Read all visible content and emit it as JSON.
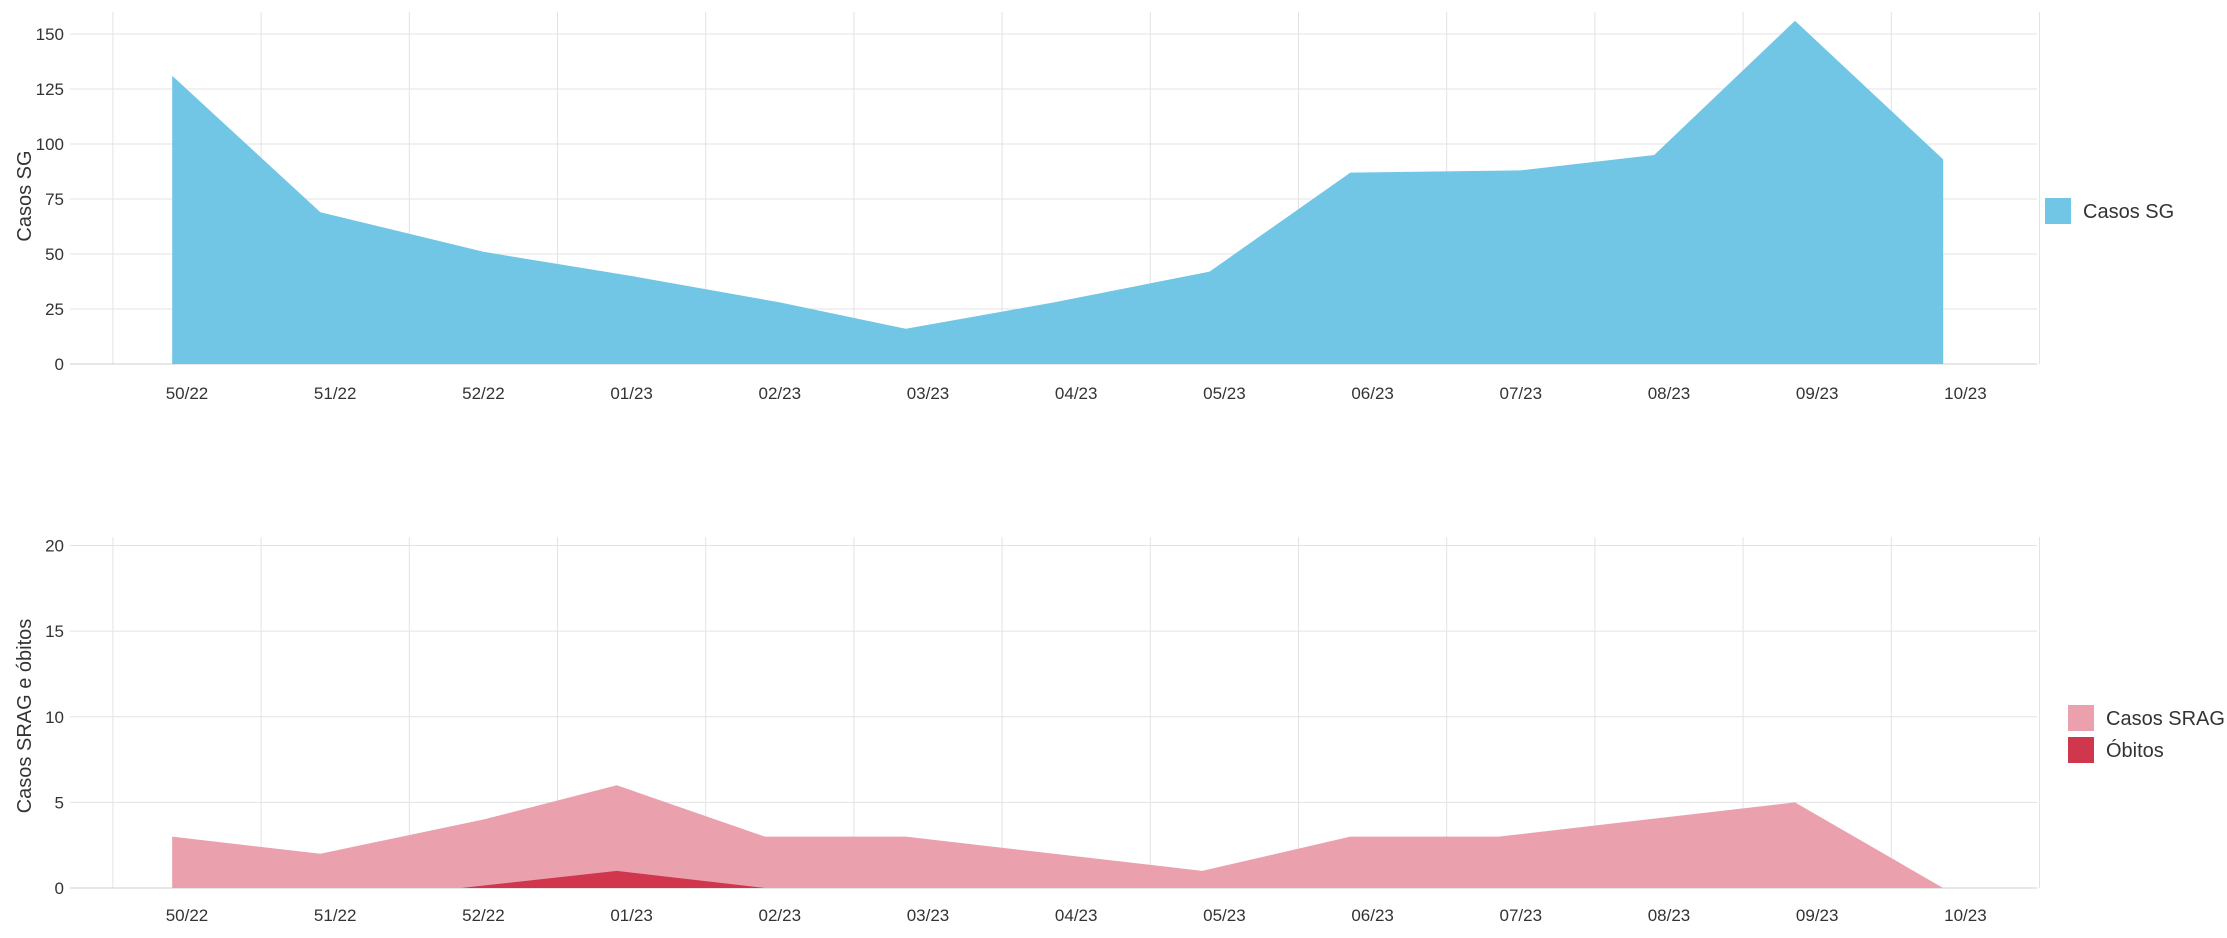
{
  "chart_data": [
    {
      "type": "area",
      "ylabel": "Casos SG",
      "ylim": [
        0,
        160
      ],
      "yticks": [
        0,
        25,
        50,
        75,
        100,
        125,
        150
      ],
      "categories": [
        "50/22",
        "51/22",
        "52/22",
        "01/23",
        "02/23",
        "03/23",
        "04/23",
        "05/23",
        "06/23",
        "07/23",
        "08/23",
        "09/23",
        "10/23"
      ],
      "x": [
        0,
        1,
        2,
        3,
        4,
        5,
        6,
        7,
        8,
        9,
        10,
        11,
        12
      ],
      "series": [
        {
          "name": "Casos SG",
          "color": "#72c6e5",
          "x": [
            -0.1,
            0.9,
            2,
            3,
            4,
            4.85,
            5.85,
            6.9,
            7.85,
            9,
            9.9,
            10.85,
            11.85
          ],
          "values": [
            131,
            69,
            51,
            40,
            28,
            16,
            28,
            42,
            87,
            88,
            95,
            156,
            93
          ]
        }
      ],
      "grid": true,
      "legend_position": "right"
    },
    {
      "type": "area",
      "ylabel": "Casos SRAG e óbitos",
      "ylim": [
        0,
        20.5
      ],
      "yticks": [
        0,
        5,
        10,
        15,
        20
      ],
      "categories": [
        "50/22",
        "51/22",
        "52/22",
        "01/23",
        "02/23",
        "03/23",
        "04/23",
        "05/23",
        "06/23",
        "07/23",
        "08/23",
        "09/23",
        "10/23"
      ],
      "x": [
        0,
        1,
        2,
        3,
        4,
        5,
        6,
        7,
        8,
        9,
        10,
        11,
        12
      ],
      "series": [
        {
          "name": "Casos SRAG",
          "color": "#eaa0ad",
          "x": [
            -0.1,
            0.9,
            2,
            2.9,
            3.9,
            4.85,
            5.85,
            6.85,
            7.85,
            8.85,
            9.85,
            10.85,
            11.85
          ],
          "values": [
            3,
            2,
            4,
            6,
            3,
            3,
            2,
            1,
            3,
            3,
            4,
            5,
            0
          ]
        },
        {
          "name": "Óbitos",
          "color": "#d1374c",
          "x": [
            1.85,
            2.9,
            3.9
          ],
          "values": [
            0,
            1,
            0
          ]
        }
      ],
      "grid": true,
      "legend_position": "right"
    }
  ]
}
